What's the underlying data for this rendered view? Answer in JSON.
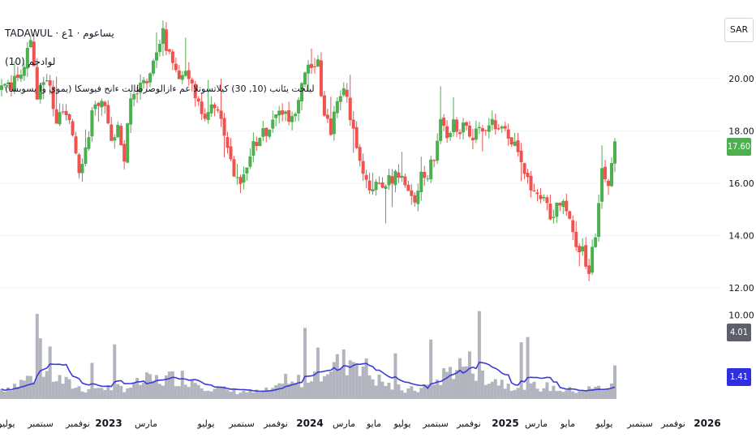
{
  "header": {
    "symbol_line": "TADAWUL · يساعوم · 1ع",
    "volume_line": "(10) لوادجم",
    "indicator_line": "ليلحت يئانب (10, 30) كيلاتسوتلا عم ءازالوصرطالت ءانح فيوسكا (يموي وأ يسوبسأ)"
  },
  "currency": "SAR",
  "badges": {
    "price": "17.60",
    "volume": "4.01 M",
    "volume_ma": "1.41 M"
  },
  "colors": {
    "up": "#4caf50",
    "down": "#ef5350",
    "volume_bar": "#b2b5be",
    "volume_ma": "#3b3bd6",
    "price_badge": "#4caf50",
    "volume_badge": "#5d606b",
    "ma_badge": "#2f2fe0"
  },
  "chart_data": {
    "type": "candlestick",
    "price_axis": {
      "ticks": [
        "20.00",
        "18.00",
        "16.00",
        "14.00",
        "12.00"
      ],
      "range": [
        11.6,
        23.0
      ]
    },
    "volume_axis": {
      "ticks": [
        "10.00"
      ],
      "range": [
        0,
        12
      ]
    },
    "time_axis": {
      "ticks": [
        "يوليو",
        "سبتمبر",
        "نوفمبر",
        "2023",
        "مارس",
        "يوليو",
        "سبتمبر",
        "نوفمبر",
        "2024",
        "مارس",
        "مايو",
        "يوليو",
        "سبتمبر",
        "نوفمبر",
        "2025",
        "مارس",
        "مايو",
        "يوليو",
        "سبتمبر",
        "نوفمبر",
        "2026"
      ],
      "bold": [
        "2023",
        "2024",
        "2025",
        "2026"
      ]
    },
    "price_waypoints": [
      [
        0,
        19.6
      ],
      [
        6,
        20.0
      ],
      [
        9,
        21.4
      ],
      [
        11,
        19.3
      ],
      [
        13,
        20.1
      ],
      [
        15,
        19.6
      ],
      [
        17,
        18.4
      ],
      [
        19,
        18.7
      ],
      [
        22,
        17.9
      ],
      [
        24,
        16.6
      ],
      [
        26,
        17.3
      ],
      [
        28,
        18.6
      ],
      [
        30,
        19.2
      ],
      [
        32,
        18.8
      ],
      [
        34,
        17.8
      ],
      [
        36,
        18.1
      ],
      [
        38,
        16.9
      ],
      [
        40,
        19.2
      ],
      [
        42,
        19.6
      ],
      [
        44,
        19.9
      ],
      [
        46,
        20.1
      ],
      [
        48,
        21.2
      ],
      [
        50,
        21.7
      ],
      [
        52,
        20.9
      ],
      [
        54,
        20.3
      ],
      [
        56,
        19.9
      ],
      [
        58,
        20.2
      ],
      [
        60,
        19.4
      ],
      [
        62,
        18.8
      ],
      [
        64,
        18.6
      ],
      [
        66,
        19.0
      ],
      [
        68,
        18.3
      ],
      [
        70,
        17.6
      ],
      [
        72,
        16.5
      ],
      [
        74,
        15.8
      ],
      [
        76,
        16.8
      ],
      [
        78,
        17.4
      ],
      [
        80,
        17.8
      ],
      [
        82,
        18.0
      ],
      [
        84,
        18.4
      ],
      [
        86,
        18.9
      ],
      [
        88,
        18.6
      ],
      [
        90,
        18.4
      ],
      [
        92,
        19.4
      ],
      [
        94,
        20.4
      ],
      [
        96,
        20.3
      ],
      [
        98,
        20.6
      ],
      [
        100,
        18.5
      ],
      [
        102,
        18.0
      ],
      [
        104,
        19.0
      ],
      [
        106,
        19.7
      ],
      [
        108,
        18.6
      ],
      [
        110,
        17.5
      ],
      [
        112,
        16.6
      ],
      [
        114,
        15.9
      ],
      [
        116,
        16.1
      ],
      [
        118,
        16.0
      ],
      [
        120,
        16.1
      ],
      [
        122,
        16.3
      ],
      [
        124,
        16.4
      ],
      [
        126,
        15.6
      ],
      [
        128,
        15.3
      ],
      [
        130,
        16.2
      ],
      [
        132,
        16.4
      ],
      [
        134,
        17.0
      ],
      [
        136,
        18.5
      ],
      [
        138,
        17.9
      ],
      [
        140,
        18.3
      ],
      [
        142,
        18.0
      ],
      [
        144,
        18.2
      ],
      [
        146,
        17.6
      ],
      [
        148,
        18.3
      ],
      [
        150,
        18.0
      ],
      [
        152,
        18.4
      ],
      [
        154,
        18.1
      ],
      [
        156,
        18.2
      ],
      [
        158,
        17.7
      ],
      [
        160,
        17.2
      ],
      [
        162,
        16.4
      ],
      [
        164,
        15.7
      ],
      [
        166,
        15.4
      ],
      [
        168,
        15.7
      ],
      [
        170,
        14.5
      ],
      [
        172,
        15.2
      ],
      [
        174,
        15.4
      ],
      [
        176,
        14.6
      ],
      [
        178,
        13.8
      ],
      [
        180,
        13.4
      ],
      [
        182,
        12.6
      ],
      [
        184,
        14.1
      ],
      [
        186,
        16.5
      ],
      [
        188,
        15.8
      ],
      [
        190,
        17.6
      ]
    ],
    "volume_waypoints": [
      [
        0,
        1.2
      ],
      [
        5,
        1.8
      ],
      [
        10,
        2.8
      ],
      [
        15,
        2.9
      ],
      [
        20,
        1.9
      ],
      [
        25,
        1.2
      ],
      [
        30,
        1.4
      ],
      [
        35,
        1.3
      ],
      [
        40,
        1.5
      ],
      [
        45,
        2.2
      ],
      [
        50,
        2.3
      ],
      [
        55,
        2.7
      ],
      [
        60,
        2.2
      ],
      [
        65,
        1.4
      ],
      [
        70,
        1.0
      ],
      [
        75,
        0.9
      ],
      [
        80,
        0.8
      ],
      [
        85,
        1.2
      ],
      [
        90,
        1.7
      ],
      [
        95,
        2.8
      ],
      [
        100,
        3.8
      ],
      [
        105,
        4.2
      ],
      [
        110,
        5.0
      ],
      [
        115,
        2.6
      ],
      [
        120,
        1.6
      ],
      [
        125,
        1.0
      ],
      [
        130,
        1.2
      ],
      [
        135,
        2.2
      ],
      [
        140,
        3.8
      ],
      [
        145,
        4.2
      ],
      [
        150,
        2.8
      ],
      [
        155,
        2.0
      ],
      [
        160,
        1.6
      ],
      [
        165,
        1.5
      ],
      [
        170,
        1.4
      ],
      [
        175,
        1.0
      ],
      [
        180,
        1.1
      ],
      [
        185,
        1.3
      ],
      [
        190,
        1.4
      ]
    ],
    "last_volume": 4.01,
    "last_volume_ma": 1.41,
    "last_close": 17.6
  }
}
